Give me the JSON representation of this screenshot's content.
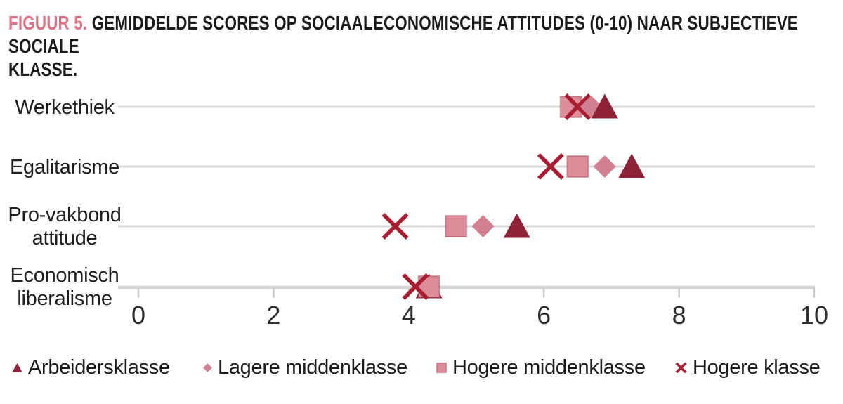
{
  "figure": {
    "label": "FIGUUR 5.",
    "label_color": "#DC7585",
    "title": "GEMIDDELDE SCORES OP SOCIAALECONOMISCHE ATTITUDES (0-10) NAAR SUBJECTIEVE SOCIALE KLASSE.",
    "title_lines": [
      "GEMIDDELDE SCORES OP SOCIAALECONOMISCHE ATTITUDES (0-10) NAAR SUBJECTIEVE SOCIALE",
      "KLASSE."
    ]
  },
  "chart_data": {
    "type": "scatter",
    "orientation": "horizontal-dot-plot",
    "title": "Gemiddelde scores op sociaaleconomische attitudes (0-10) naar subjectieve sociale klasse",
    "categories": [
      "Werkethiek",
      "Egalitarisme",
      "Pro-vakbond attitude",
      "Economisch liberalisme"
    ],
    "series": [
      {
        "name": "Arbeidersklasse",
        "marker": "triangle",
        "color": "#8E2337",
        "values": [
          6.9,
          7.3,
          5.6,
          4.3
        ]
      },
      {
        "name": "Lagere middenklasse",
        "marker": "diamond",
        "color": "#D2808F",
        "values": [
          6.7,
          6.9,
          5.1,
          4.3
        ]
      },
      {
        "name": "Hogere middenklasse",
        "marker": "square",
        "color": "#DE8C99",
        "values": [
          6.4,
          6.5,
          4.7,
          4.3
        ]
      },
      {
        "name": "Hogere klasse",
        "marker": "x",
        "color": "#A81D30",
        "values": [
          6.5,
          6.1,
          3.8,
          4.1
        ]
      }
    ],
    "xlim": [
      0,
      10
    ],
    "xticks": [
      0,
      2,
      4,
      6,
      8,
      10
    ],
    "xlabel": "",
    "ylabel": "",
    "grid": "one horizontal baseline per category",
    "gridline_color": "#D8D8D8",
    "legend_position": "bottom"
  }
}
